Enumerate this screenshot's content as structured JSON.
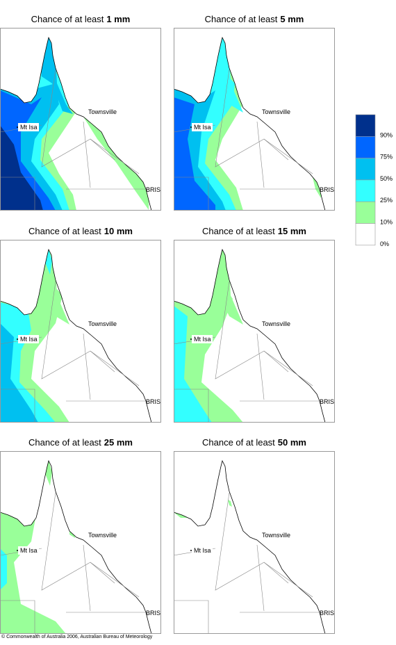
{
  "panels": [
    {
      "title": {
        "prefix": "Chance of at least",
        "amount": "1 mm"
      }
    },
    {
      "title": {
        "prefix": "Chance of at least",
        "amount": "5 mm"
      }
    },
    {
      "title": {
        "prefix": "Chance of at least",
        "amount": "10 mm"
      }
    },
    {
      "title": {
        "prefix": "Chance of at least",
        "amount": "15 mm"
      }
    },
    {
      "title": {
        "prefix": "Chance of at least",
        "amount": "25 mm"
      }
    },
    {
      "title": {
        "prefix": "Chance of at least",
        "amount": "50 mm"
      }
    }
  ],
  "places": {
    "townsville": "Townsville",
    "mt_isa": "Mt Isa",
    "bris": "BRIS"
  },
  "legend": [
    {
      "label": "90%",
      "color": "#00308c"
    },
    {
      "label": "75%",
      "color": "#0066ff"
    },
    {
      "label": "50%",
      "color": "#00c0f0"
    },
    {
      "label": "25%",
      "color": "#33ffff"
    },
    {
      "label": "10%",
      "color": "#99ff99"
    },
    {
      "label": "0%",
      "color": "#ffffff"
    }
  ],
  "footer": "© Commonwealth of Australia 2006, Australian Bureau of Meteorology"
}
